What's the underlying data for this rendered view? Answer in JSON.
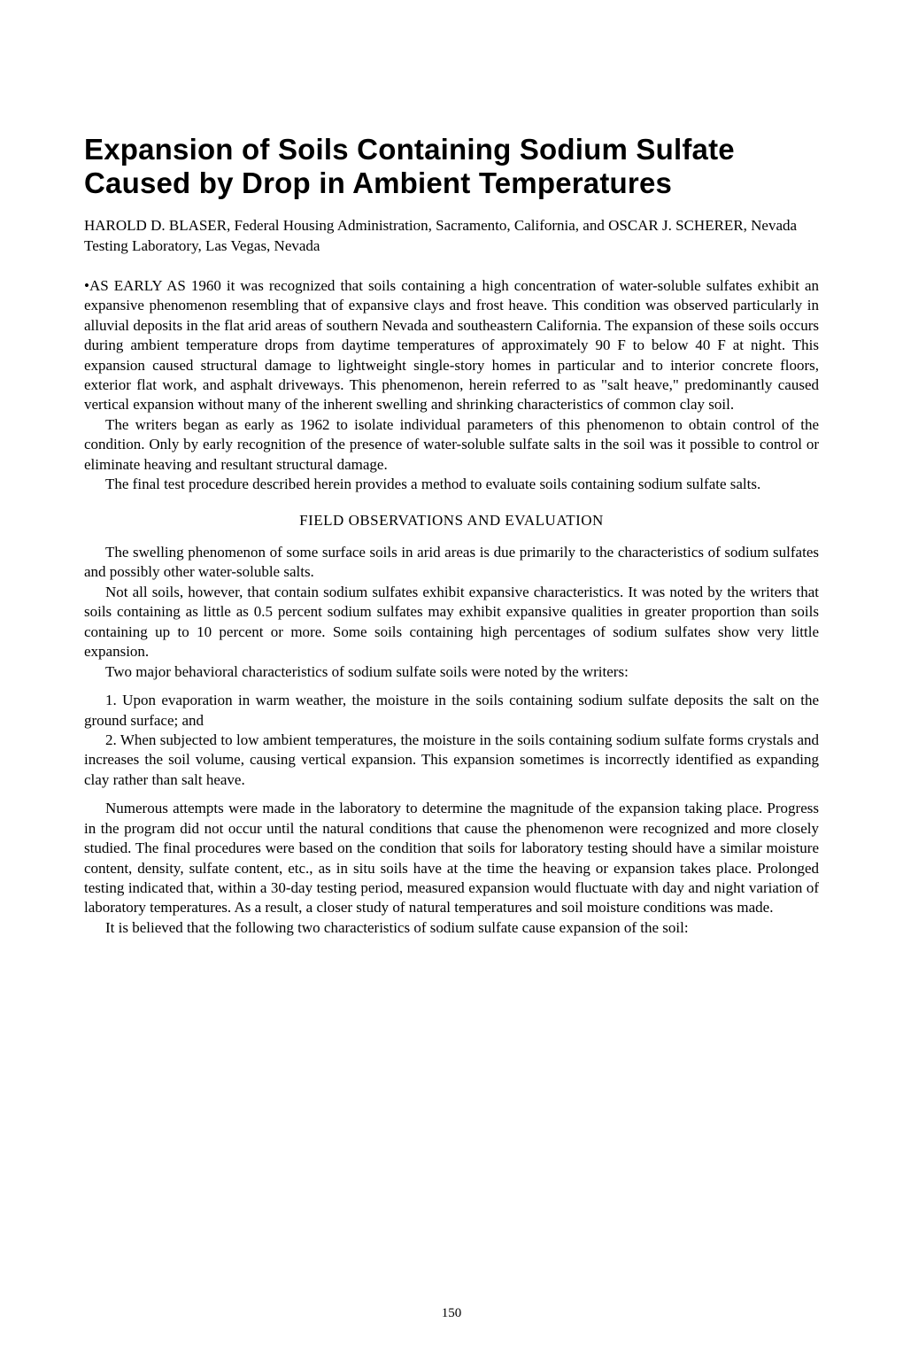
{
  "title_line1": "Expansion of Soils Containing Sodium Sulfate",
  "title_line2": "Caused by Drop in Ambient Temperatures",
  "authors": "HAROLD D. BLASER, Federal Housing Administration, Sacramento, California, and OSCAR J. SCHERER, Nevada Testing Laboratory, Las Vegas, Nevada",
  "para1": "•AS EARLY AS 1960 it was recognized that soils containing a high concentration of water-soluble sulfates exhibit an expansive phenomenon resembling that of expansive clays and frost heave. This condition was observed particularly in alluvial deposits in the flat arid areas of southern Nevada and southeastern California. The expansion of these soils occurs during ambient temperature drops from daytime temperatures of approximately 90 F to below 40 F at night. This expansion caused structural damage to lightweight single-story homes in particular and to interior concrete floors, exterior flat work, and asphalt driveways. This phenomenon, herein referred to as \"salt heave,\" predominantly caused vertical expansion without many of the inherent swelling and shrinking characteristics of common clay soil.",
  "para2": "The writers began as early as 1962 to isolate individual parameters of this phenomenon to obtain control of the condition. Only by early recognition of the presence of water-soluble sulfate salts in the soil was it possible to control or eliminate heaving and resultant structural damage.",
  "para3": "The final test procedure described herein provides a method to evaluate soils containing sodium sulfate salts.",
  "section_heading": "FIELD OBSERVATIONS AND EVALUATION",
  "para4": "The swelling phenomenon of some surface soils in arid areas is due primarily to the characteristics of sodium sulfates and possibly other water-soluble salts.",
  "para5": "Not all soils, however, that contain sodium sulfates exhibit expansive characteristics. It was noted by the writers that soils containing as little as 0.5 percent sodium sulfates may exhibit expansive qualities in greater proportion than soils containing up to 10 percent or more. Some soils containing high percentages of sodium sulfates show very little expansion.",
  "para6": "Two major behavioral characteristics of sodium sulfate soils were noted by the writers:",
  "list1": "1. Upon evaporation in warm weather, the moisture in the soils containing sodium sulfate deposits the salt on the ground surface; and",
  "list2": "2. When subjected to low ambient temperatures, the moisture in the soils containing sodium sulfate forms crystals and increases the soil volume, causing vertical expansion. This expansion sometimes is incorrectly identified as expanding clay rather than salt heave.",
  "para7": "Numerous attempts were made in the laboratory to determine the magnitude of the expansion taking place. Progress in the program did not occur until the natural conditions that cause the phenomenon were recognized and more closely studied. The final procedures were based on the condition that soils for laboratory testing should have a similar moisture content, density, sulfate content, etc., as in situ soils have at the time the heaving or expansion takes place. Prolonged testing indicated that, within a 30-day testing period, measured expansion would fluctuate with day and night variation of laboratory temperatures. As a result, a closer study of natural temperatures and soil moisture conditions was made.",
  "para8": "It is believed that the following two characteristics of sodium sulfate cause expansion of the soil:",
  "page_number": "150"
}
